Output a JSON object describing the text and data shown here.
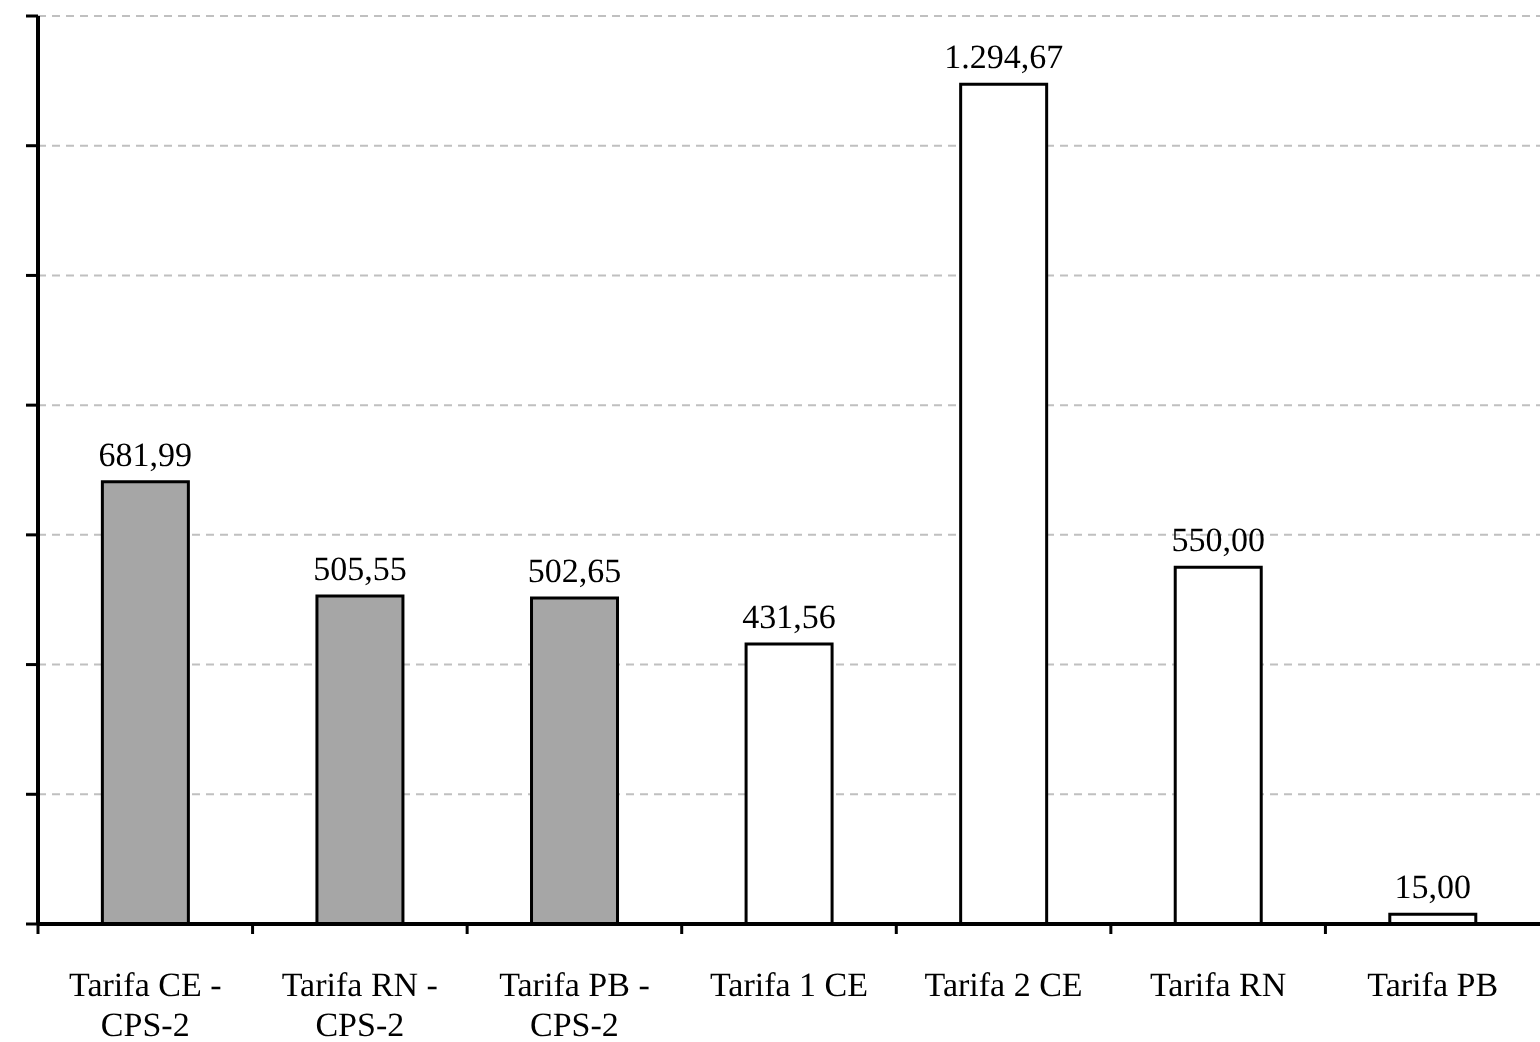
{
  "chart_data": {
    "type": "bar",
    "categories": [
      "Tarifa CE - CPS-2",
      "Tarifa RN - CPS-2",
      "Tarifa PB - CPS-2",
      "Tarifa 1 CE",
      "Tarifa 2 CE",
      "Tarifa RN",
      "Tarifa PB"
    ],
    "values": [
      681.99,
      505.55,
      502.65,
      431.56,
      1294.67,
      550.0,
      15.0
    ],
    "colors": [
      "#a6a6a6",
      "#a6a6a6",
      "#a6a6a6",
      "#ffffff",
      "#ffffff",
      "#ffffff",
      "#ffffff"
    ],
    "value_labels": [
      "681,99",
      "505,55",
      "502,65",
      "431,56",
      "1.294,67",
      "550,00",
      "15,00"
    ],
    "ylim": [
      0,
      1400
    ],
    "yticks": [
      {
        "value": 0,
        "label": null
      },
      {
        "value": 200,
        "label": null
      },
      {
        "value": 400,
        "label": null
      },
      {
        "value": 600,
        "label": null
      },
      {
        "value": 800,
        "label": null
      },
      {
        "value": 1000,
        "label": null
      },
      {
        "value": 1200,
        "label": null
      },
      {
        "value": 1400,
        "label": null
      }
    ],
    "grid": "y",
    "tick_labels": "x"
  }
}
